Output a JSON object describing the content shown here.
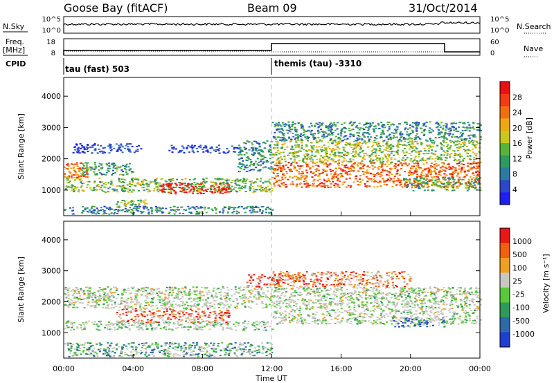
{
  "header": {
    "station": "Goose Bay (fitACF)",
    "beam": "Beam 09",
    "date": "31/Oct/2014"
  },
  "panels": {
    "nsky_label": "N.Sky",
    "nsky_ticks": [
      "10^5",
      "10^0"
    ],
    "nsearch_label": "N.Search",
    "nsearch_ticks": [
      "10^5",
      "10^0"
    ],
    "freq_label_1": "Freq.",
    "freq_label_2": "[MHz]",
    "freq_ticks": [
      "18",
      "8"
    ],
    "nave_label": "Nave",
    "nave_ticks": [
      "60",
      "0"
    ],
    "cpid_label": "CPID",
    "cpid_entries": [
      {
        "text": "tau (fast) 503",
        "start_hour": 0
      },
      {
        "text": "themis (tau) -3310",
        "start_hour": 12
      }
    ]
  },
  "chart_data": [
    {
      "type": "heatmap",
      "name": "power",
      "ylabel": "Slant Range [km]",
      "y_ticks": [
        "1000",
        "2000",
        "3000",
        "4000"
      ],
      "y_range_km": [
        180,
        4600
      ],
      "x_range_hours": [
        0,
        24
      ],
      "colorbar_label": "Power [dB]",
      "colorbar_ticks": [
        "28",
        "24",
        "20",
        "16",
        "12",
        "8",
        "4"
      ],
      "colorbar_colors": [
        "#1f1ff0",
        "#2b48c8",
        "#2e7a9e",
        "#2f9a60",
        "#59b23a",
        "#c8c81e",
        "#f0a810",
        "#f07010",
        "#f03c10",
        "#e81010"
      ],
      "bands": [
        {
          "t0": 0.0,
          "t1": 12.0,
          "r0": 950,
          "r1": 1400,
          "level": 0.45
        },
        {
          "t0": 0.0,
          "t1": 1.5,
          "r0": 1400,
          "r1": 1900,
          "level": 0.75
        },
        {
          "t0": 1.0,
          "t1": 4.0,
          "r0": 1500,
          "r1": 1900,
          "level": 0.35
        },
        {
          "t0": 5.5,
          "t1": 9.5,
          "r0": 900,
          "r1": 1250,
          "level": 0.97
        },
        {
          "t0": 0.5,
          "t1": 4.5,
          "r0": 2200,
          "r1": 2500,
          "level": 0.12
        },
        {
          "t0": 6.0,
          "t1": 10.0,
          "r0": 2200,
          "r1": 2450,
          "level": 0.12
        },
        {
          "t0": 10.0,
          "t1": 12.0,
          "r0": 1600,
          "r1": 2600,
          "level": 0.3
        },
        {
          "t0": 12.0,
          "t1": 24.0,
          "r0": 1100,
          "r1": 1900,
          "level": 0.78
        },
        {
          "t0": 12.0,
          "t1": 24.0,
          "r0": 1900,
          "r1": 2600,
          "level": 0.5
        },
        {
          "t0": 19.5,
          "t1": 24.0,
          "r0": 1000,
          "r1": 1400,
          "level": 0.4
        },
        {
          "t0": 12.0,
          "t1": 24.0,
          "r0": 2600,
          "r1": 3200,
          "level": 0.3
        },
        {
          "t0": 3.0,
          "t1": 5.0,
          "r0": 500,
          "r1": 700,
          "level": 0.5
        },
        {
          "t0": 0.0,
          "t1": 12.0,
          "r0": 250,
          "r1": 500,
          "level": 0.3
        }
      ]
    },
    {
      "type": "heatmap",
      "name": "velocity",
      "ylabel": "Slant Range [km]",
      "y_ticks": [
        "1000",
        "2000",
        "3000",
        "4000"
      ],
      "y_range_km": [
        180,
        4600
      ],
      "x_range_hours": [
        0,
        24
      ],
      "xlabel": "Time UT",
      "x_ticks": [
        "00:00",
        "04:00",
        "08:00",
        "12:00",
        "16:00",
        "20:00",
        "00:00"
      ],
      "colorbar_label": "Velocity [m s⁻¹]",
      "colorbar_ticks": [
        "1000",
        "500",
        "100",
        "25",
        "-25",
        "-100",
        "-500",
        "-1000"
      ],
      "colorbar_colors": [
        "#1f3fd0",
        "#2e6aa8",
        "#2e9a5a",
        "#5ac83a",
        "#c8c8c0",
        "#f0a020",
        "#f06010",
        "#e81818"
      ],
      "ground_scatter_color": "#c8c8c0",
      "bands": [
        {
          "t0": 0.0,
          "t1": 12.0,
          "r0": 1100,
          "r1": 1400,
          "level": 0.45
        },
        {
          "t0": 3.0,
          "t1": 9.5,
          "r0": 1350,
          "r1": 1800,
          "level": 0.85
        },
        {
          "t0": 0.0,
          "t1": 12.0,
          "r0": 1800,
          "r1": 2500,
          "level": 0.5
        },
        {
          "t0": 12.0,
          "t1": 24.0,
          "r0": 1300,
          "r1": 2500,
          "level": 0.5
        },
        {
          "t0": 10.5,
          "t1": 12.5,
          "r0": 2500,
          "r1": 2900,
          "level": 0.95
        },
        {
          "t0": 12.0,
          "t1": 20.0,
          "r0": 2500,
          "r1": 3000,
          "level": 0.8
        },
        {
          "t0": 19.0,
          "t1": 22.0,
          "r0": 1200,
          "r1": 1500,
          "level": 0.15
        },
        {
          "t0": 0.0,
          "t1": 12.0,
          "r0": 250,
          "r1": 700,
          "level": 0.3
        }
      ]
    }
  ]
}
